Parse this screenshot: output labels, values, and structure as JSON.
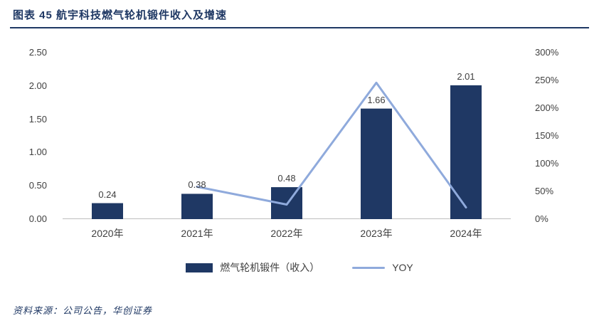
{
  "header": {
    "title": "图表 45  航宇科技燃气轮机锻件收入及增速"
  },
  "chart_data": {
    "type": "bar",
    "subtype": "bar-line-combo",
    "categories": [
      "2020年",
      "2021年",
      "2022年",
      "2023年",
      "2024年"
    ],
    "series": [
      {
        "name": "燃气轮机锻件（收入）",
        "type": "bar",
        "axis": "left",
        "values": [
          0.24,
          0.38,
          0.48,
          1.66,
          2.01
        ],
        "color": "#1F3864"
      },
      {
        "name": "YOY",
        "type": "line",
        "axis": "right",
        "values": [
          null,
          58.3,
          26.3,
          245.8,
          21.1
        ],
        "color": "#8FAADC"
      }
    ],
    "bar_labels": [
      "0.24",
      "0.38",
      "0.48",
      "1.66",
      "2.01"
    ],
    "left_axis": {
      "min": 0,
      "max": 2.5,
      "ticks": [
        "2.50",
        "2.00",
        "1.50",
        "1.00",
        "0.50",
        "0.00"
      ]
    },
    "right_axis": {
      "min": 0,
      "max": 300,
      "ticks": [
        "300%",
        "250%",
        "200%",
        "150%",
        "100%",
        "50%",
        "0%"
      ]
    },
    "grid": false,
    "legend_position": "bottom"
  },
  "legend": {
    "bar_label": "燃气轮机锻件（收入）",
    "line_label": "YOY"
  },
  "footer": {
    "source": "资料来源：公司公告，华创证券"
  },
  "colors": {
    "accent": "#1F3864",
    "line": "#8FAADC",
    "axis_text": "#404040",
    "baseline": "#BFBFBF"
  }
}
